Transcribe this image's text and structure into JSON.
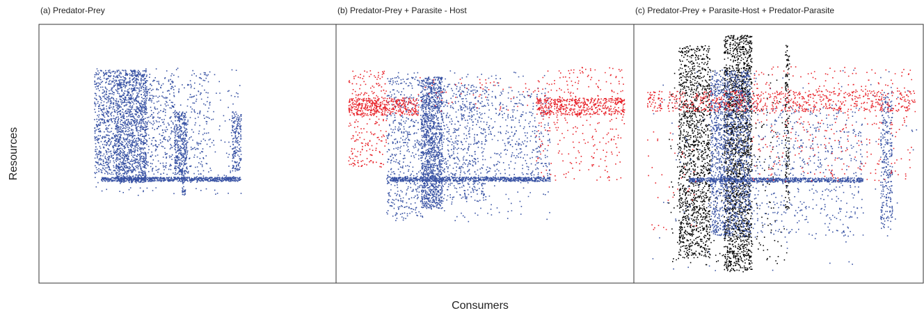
{
  "figure": {
    "panels": [
      {
        "title": "(a) Predator-Prey",
        "colors": [
          "#3953a4"
        ]
      },
      {
        "title": "(b) Predator-Prey + Parasite - Host",
        "colors": [
          "#3953a4",
          "#e82229"
        ]
      },
      {
        "title": "(c) Predator-Prey + Parasite-Host + Predator-Parasite",
        "colors": [
          "#3953a4",
          "#e82229",
          "#000000"
        ]
      }
    ],
    "xlabel": "Consumers",
    "ylabel": "Resources"
  }
}
